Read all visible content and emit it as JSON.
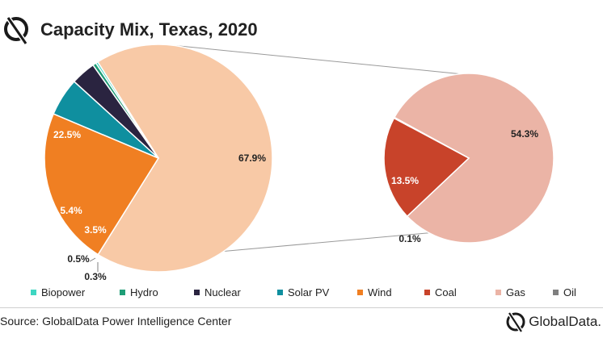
{
  "header": {
    "title": "Capacity Mix, Texas, 2020",
    "logo_icon": "globaldata-logo-icon"
  },
  "chart_data": [
    {
      "type": "pie",
      "name": "main-pie",
      "categories": [
        "Gas",
        "Wind",
        "Solar PV",
        "Nuclear",
        "Hydro",
        "Biopower"
      ],
      "values": [
        67.9,
        22.5,
        5.4,
        3.5,
        0.5,
        0.3
      ],
      "labels": [
        "67.9%",
        "22.5%",
        "5.4%",
        "3.5%",
        "0.5%",
        "0.3%"
      ],
      "colors": [
        "#f8c9a6",
        "#f07f22",
        "#0f8f9f",
        "#2a2440",
        "#1f9e77",
        "#3ed6c2"
      ]
    },
    {
      "type": "pie",
      "name": "gas-breakdown-pie",
      "categories": [
        "Gas",
        "Coal",
        "Oil"
      ],
      "values": [
        54.3,
        13.5,
        0.1
      ],
      "labels": [
        "54.3%",
        "13.5%",
        "0.1%"
      ],
      "colors": [
        "#ebb4a6",
        "#c8432a",
        "#7f7f7f"
      ]
    }
  ],
  "legend": [
    {
      "label": "Biopower",
      "color": "#3ed6c2"
    },
    {
      "label": "Hydro",
      "color": "#1f9e77"
    },
    {
      "label": "Nuclear",
      "color": "#2a2440"
    },
    {
      "label": "Solar PV",
      "color": "#0f8f9f"
    },
    {
      "label": "Wind",
      "color": "#f07f22"
    },
    {
      "label": "Coal",
      "color": "#c8432a"
    },
    {
      "label": "Gas",
      "color": "#ebb4a6"
    },
    {
      "label": "Oil",
      "color": "#7f7f7f"
    }
  ],
  "footer": {
    "source": "Source: GlobalData Power Intelligence Center",
    "brand": "GlobalData."
  }
}
